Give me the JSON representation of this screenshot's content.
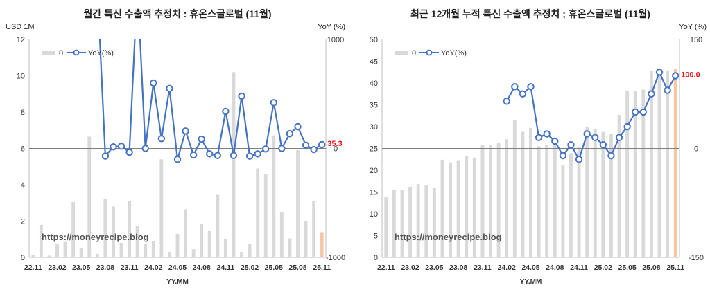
{
  "chart_data": [
    {
      "type": "bar",
      "title": "월간 특신 수출액 추정치 : 휴온스글로벌 (11월)",
      "y_left_unit": "USD 1M",
      "y_right_unit": "YoY (%)",
      "xlabel": "YY.MM",
      "ylim_left": [
        0,
        12
      ],
      "ylim_right": [
        -1000,
        1000
      ],
      "yticks_left": [
        "0",
        "2",
        "4",
        "6",
        "8",
        "10",
        "12"
      ],
      "yticks_right": [
        "-1000",
        "0",
        "1000"
      ],
      "xtick_labels": [
        "22.11",
        "23.02",
        "23.05",
        "23.08",
        "23.11",
        "24.02",
        "24.05",
        "24.08",
        "24.11",
        "25.02",
        "25.05",
        "25.08",
        "25.11"
      ],
      "categories": [
        "22.11",
        "22.12",
        "23.01",
        "23.02",
        "23.03",
        "23.04",
        "23.05",
        "23.06",
        "23.07",
        "23.08",
        "23.09",
        "23.10",
        "23.11",
        "23.12",
        "24.01",
        "24.02",
        "24.03",
        "24.04",
        "24.05",
        "24.06",
        "24.07",
        "24.08",
        "24.09",
        "24.10",
        "24.11",
        "24.12",
        "25.01",
        "25.02",
        "25.03",
        "25.04",
        "25.05",
        "25.06",
        "25.07",
        "25.08",
        "25.09",
        "25.10",
        "25.11"
      ],
      "series": [
        {
          "name": "0",
          "kind": "bar",
          "axis": "left",
          "values": [
            0.15,
            1.8,
            0.1,
            0.75,
            0.85,
            3.05,
            0.5,
            6.65,
            0.2,
            3.2,
            2.8,
            0.8,
            3.1,
            1.75,
            0.75,
            0.9,
            5.4,
            0.3,
            1.3,
            2.65,
            0.45,
            1.85,
            1.45,
            3.45,
            1.0,
            10.2,
            0.3,
            0.75,
            4.9,
            4.6,
            6.7,
            2.5,
            1.05,
            5.9,
            2.0,
            3.1,
            1.35
          ]
        },
        {
          "name": "YoY(%)",
          "kind": "line",
          "axis": "right",
          "values": [
            null,
            null,
            null,
            null,
            null,
            null,
            null,
            null,
            1500,
            -70,
            15,
            20,
            -35,
            1500,
            0,
            600,
            90,
            550,
            -100,
            160,
            -60,
            85,
            -50,
            -65,
            340,
            -65,
            480,
            -70,
            -50,
            -5,
            420,
            0,
            135,
            200,
            30,
            -10,
            35.3
          ]
        }
      ],
      "last_value_label": "35.3",
      "watermark": "https://moneyrecipe.blog",
      "grid": false,
      "legend": "top-left"
    },
    {
      "type": "bar",
      "title": "최근 12개월 누적 특신 수출액 추정치 ; 휴온스글로벌 (11월)",
      "y_left_unit": "",
      "y_right_unit": "YoY (%)",
      "xlabel": "YY.MM",
      "ylim_left": [
        0,
        50
      ],
      "ylim_right": [
        -150,
        150
      ],
      "yticks_left": [
        "0",
        "5",
        "10",
        "15",
        "20",
        "25",
        "30",
        "35",
        "40",
        "45",
        "50"
      ],
      "yticks_right": [
        "-150",
        "0",
        "150"
      ],
      "xtick_labels": [
        "22.11",
        "23.02",
        "23.05",
        "23.08",
        "23.11",
        "24.02",
        "24.05",
        "24.08",
        "24.11",
        "25.02",
        "25.05",
        "25.08",
        "25.11"
      ],
      "categories": [
        "22.11",
        "22.12",
        "23.01",
        "23.02",
        "23.03",
        "23.04",
        "23.05",
        "23.06",
        "23.07",
        "23.08",
        "23.09",
        "23.10",
        "23.11",
        "23.12",
        "24.01",
        "24.02",
        "24.03",
        "24.04",
        "24.05",
        "24.06",
        "24.07",
        "24.08",
        "24.09",
        "24.10",
        "24.11",
        "24.12",
        "25.01",
        "25.02",
        "25.03",
        "25.04",
        "25.05",
        "25.06",
        "25.07",
        "25.08",
        "25.09",
        "25.10",
        "25.11"
      ],
      "series": [
        {
          "name": "0",
          "kind": "bar",
          "axis": "left",
          "values": [
            13.9,
            15.5,
            15.5,
            16.2,
            16.8,
            16.5,
            16.0,
            22.4,
            21.8,
            22.3,
            23.3,
            22.9,
            25.7,
            25.7,
            26.3,
            27.1,
            31.6,
            28.8,
            29.7,
            25.5,
            25.9,
            26.0,
            21.1,
            23.9,
            25.3,
            30.0,
            29.5,
            28.8,
            28.3,
            32.7,
            38.1,
            38.2,
            38.5,
            42.7,
            43.2,
            42.9,
            43.2
          ]
        },
        {
          "name": "YoY(%)",
          "kind": "line",
          "axis": "right",
          "values": [
            null,
            null,
            null,
            null,
            null,
            null,
            null,
            null,
            null,
            null,
            null,
            null,
            null,
            null,
            null,
            65,
            85,
            75,
            85,
            15,
            20,
            10,
            -10,
            5,
            -15,
            20,
            15,
            5,
            -10,
            15,
            30,
            50,
            50,
            75,
            105,
            80,
            100.0
          ]
        }
      ],
      "last_value_label": "100.0",
      "watermark": "https://moneyrecipe.blog",
      "grid": false,
      "legend": "top-left"
    }
  ],
  "colors": {
    "bar": "#d9d9d9",
    "bar_last": "#f7c6a3",
    "line": "#4472c4",
    "last_label": "#e8141c"
  }
}
